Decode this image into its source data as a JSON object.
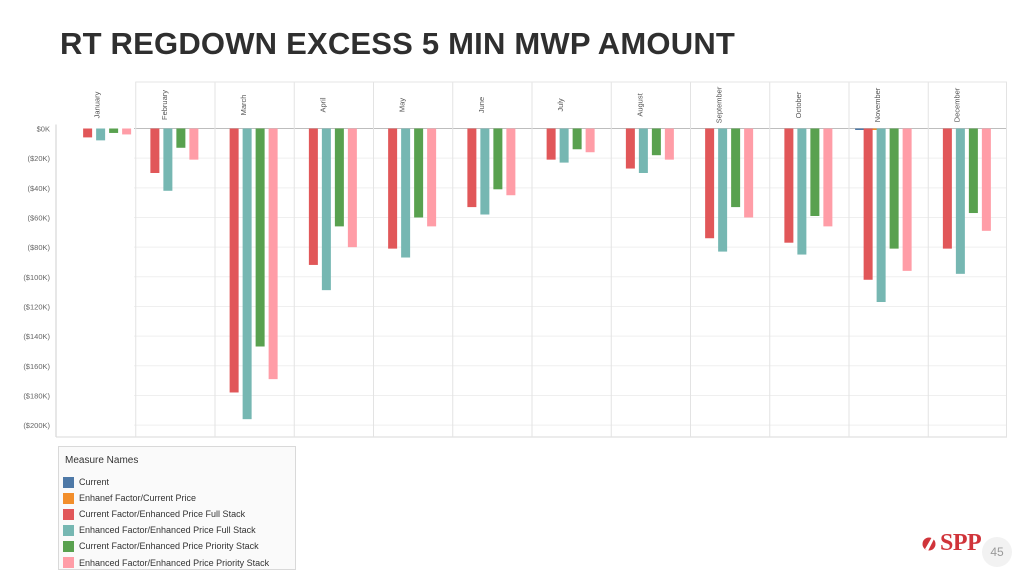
{
  "slide": {
    "title": "RT REGDOWN EXCESS 5 MIN MWP AMOUNT",
    "logo_text": "SPP",
    "page_number": "45"
  },
  "legend": {
    "title": "Measure Names",
    "items": [
      {
        "label": "Current",
        "color": "#4e79a7"
      },
      {
        "label": "Enhanef Factor/Current Price",
        "color": "#f28e2b"
      },
      {
        "label": "Current Factor/Enhanced Price Full Stack",
        "color": "#e15759"
      },
      {
        "label": "Enhanced Factor/Enhanced Price Full Stack",
        "color": "#76b7b2"
      },
      {
        "label": "Current Factor/Enhanced Price Priority Stack",
        "color": "#59a14f"
      },
      {
        "label": "Enhanced Factor/Enhanced Price Priority Stack",
        "color": "#ff9da7"
      }
    ]
  },
  "chart_data": {
    "type": "bar",
    "title": "RT REGDOWN EXCESS 5 MIN MWP AMOUNT",
    "ylim": [
      -205000,
      0
    ],
    "yticks": [
      0,
      -20000,
      -40000,
      -60000,
      -80000,
      -100000,
      -120000,
      -140000,
      -160000,
      -180000,
      -200000
    ],
    "ytick_labels": [
      "$0K",
      "($20K)",
      "($40K)",
      "($60K)",
      "($80K)",
      "($100K)",
      "($120K)",
      "($140K)",
      "($160K)",
      "($180K)",
      "($200K)"
    ],
    "categories": [
      "January",
      "February",
      "March",
      "April",
      "May",
      "June",
      "July",
      "August",
      "September",
      "October",
      "November",
      "December"
    ],
    "grid": true,
    "legend_position": "bottom-left",
    "series": [
      {
        "name": "Current",
        "color": "#4e79a7",
        "values": [
          null,
          null,
          null,
          null,
          null,
          null,
          null,
          null,
          null,
          null,
          -400,
          null
        ]
      },
      {
        "name": "Enhanef Factor/Current Price",
        "color": "#f28e2b",
        "values": [
          null,
          null,
          null,
          null,
          null,
          null,
          null,
          null,
          null,
          null,
          -400,
          null
        ]
      },
      {
        "name": "Current Factor/Enhanced Price Full Stack",
        "color": "#e15759",
        "values": [
          -6000,
          -30000,
          -178000,
          -92000,
          -81000,
          -53000,
          -21000,
          -27000,
          -74000,
          -77000,
          -102000,
          -81000
        ]
      },
      {
        "name": "Enhanced Factor/Enhanced Price Full Stack",
        "color": "#76b7b2",
        "values": [
          -8000,
          -42000,
          -196000,
          -109000,
          -87000,
          -58000,
          -23000,
          -30000,
          -83000,
          -85000,
          -117000,
          -98000
        ]
      },
      {
        "name": "Current Factor/Enhanced Price Priority Stack",
        "color": "#59a14f",
        "values": [
          -3000,
          -13000,
          -147000,
          -66000,
          -60000,
          -41000,
          -14000,
          -18000,
          -53000,
          -59000,
          -81000,
          -57000
        ]
      },
      {
        "name": "Enhanced Factor/Enhanced Price Priority Stack",
        "color": "#ff9da7",
        "values": [
          -4000,
          -21000,
          -169000,
          -80000,
          -66000,
          -45000,
          -16000,
          -21000,
          -60000,
          -66000,
          -96000,
          -69000
        ]
      }
    ]
  }
}
